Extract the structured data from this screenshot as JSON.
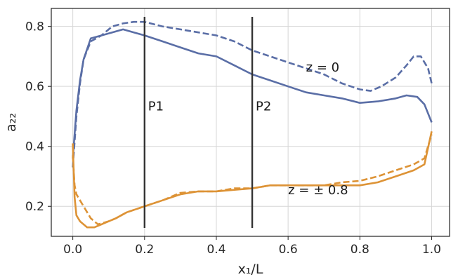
{
  "chart_data": {
    "type": "line",
    "xlabel": "x₁/L",
    "ylabel": "a₂₂",
    "xlim": [
      -0.06,
      1.05
    ],
    "ylim": [
      0.1,
      0.86
    ],
    "xticks": [
      0.0,
      0.2,
      0.4,
      0.6,
      0.8,
      1.0
    ],
    "xtick_labels": [
      "0.0",
      "0.2",
      "0.4",
      "0.6",
      "0.8",
      "1.0"
    ],
    "yticks": [
      0.2,
      0.4,
      0.6,
      0.8
    ],
    "ytick_labels": [
      "0.2",
      "0.4",
      "0.6",
      "0.8"
    ],
    "grid": true,
    "colors": {
      "upper": "#5a6ea6",
      "lower": "#dd9336",
      "marker_line": "#333333"
    },
    "vertical_lines": [
      {
        "label": "P1",
        "x": 0.2,
        "y_range": [
          0.1,
          0.86
        ]
      },
      {
        "label": "P2",
        "x": 0.5,
        "y_range": [
          0.1,
          0.86
        ]
      }
    ],
    "annotations": [
      {
        "text": "z = 0",
        "x": 0.65,
        "y": 0.65
      },
      {
        "text": "z = ± 0.8",
        "x": 0.6,
        "y": 0.24
      }
    ],
    "series": [
      {
        "group": "z = 0",
        "style": "solid",
        "color": "#5a6ea6",
        "x": [
          0.0,
          0.01,
          0.02,
          0.03,
          0.05,
          0.08,
          0.11,
          0.14,
          0.17,
          0.2,
          0.25,
          0.3,
          0.35,
          0.4,
          0.45,
          0.5,
          0.55,
          0.6,
          0.65,
          0.7,
          0.75,
          0.8,
          0.85,
          0.9,
          0.93,
          0.96,
          0.98,
          1.0
        ],
        "y": [
          0.36,
          0.52,
          0.62,
          0.69,
          0.76,
          0.77,
          0.78,
          0.79,
          0.78,
          0.77,
          0.75,
          0.73,
          0.71,
          0.7,
          0.67,
          0.64,
          0.62,
          0.6,
          0.58,
          0.57,
          0.56,
          0.545,
          0.55,
          0.56,
          0.57,
          0.565,
          0.54,
          0.48
        ]
      },
      {
        "group": "z = 0",
        "style": "dashed",
        "color": "#5a6ea6",
        "x": [
          0.0,
          0.01,
          0.02,
          0.03,
          0.05,
          0.08,
          0.11,
          0.14,
          0.17,
          0.2,
          0.25,
          0.3,
          0.35,
          0.4,
          0.45,
          0.5,
          0.55,
          0.6,
          0.65,
          0.7,
          0.75,
          0.8,
          0.83,
          0.86,
          0.9,
          0.93,
          0.95,
          0.97,
          0.99,
          1.0
        ],
        "y": [
          0.33,
          0.5,
          0.61,
          0.69,
          0.75,
          0.77,
          0.8,
          0.81,
          0.815,
          0.815,
          0.8,
          0.79,
          0.78,
          0.77,
          0.75,
          0.72,
          0.7,
          0.68,
          0.66,
          0.64,
          0.61,
          0.59,
          0.585,
          0.6,
          0.63,
          0.67,
          0.7,
          0.7,
          0.66,
          0.61
        ]
      },
      {
        "group": "z = ± 0.8",
        "style": "solid",
        "color": "#dd9336",
        "x": [
          0.0,
          0.005,
          0.01,
          0.02,
          0.04,
          0.06,
          0.08,
          0.1,
          0.12,
          0.15,
          0.2,
          0.25,
          0.3,
          0.35,
          0.4,
          0.45,
          0.5,
          0.55,
          0.6,
          0.65,
          0.7,
          0.75,
          0.8,
          0.85,
          0.9,
          0.95,
          0.98,
          1.0
        ],
        "y": [
          0.41,
          0.23,
          0.17,
          0.15,
          0.13,
          0.13,
          0.14,
          0.15,
          0.16,
          0.18,
          0.2,
          0.22,
          0.24,
          0.25,
          0.25,
          0.255,
          0.26,
          0.27,
          0.27,
          0.27,
          0.27,
          0.27,
          0.27,
          0.28,
          0.3,
          0.32,
          0.34,
          0.45
        ]
      },
      {
        "group": "z = ± 0.8",
        "style": "dashed",
        "color": "#dd9336",
        "x": [
          0.0,
          0.005,
          0.01,
          0.02,
          0.03,
          0.05,
          0.07,
          0.1,
          0.12,
          0.15,
          0.2,
          0.25,
          0.3,
          0.35,
          0.4,
          0.45,
          0.5,
          0.55,
          0.6,
          0.65,
          0.7,
          0.75,
          0.8,
          0.85,
          0.9,
          0.95,
          0.98,
          1.0
        ],
        "y": [
          0.37,
          0.27,
          0.24,
          0.22,
          0.2,
          0.16,
          0.14,
          0.15,
          0.16,
          0.18,
          0.2,
          0.22,
          0.245,
          0.25,
          0.25,
          0.26,
          0.26,
          0.27,
          0.27,
          0.27,
          0.27,
          0.28,
          0.285,
          0.3,
          0.32,
          0.34,
          0.36,
          0.44
        ]
      }
    ]
  }
}
